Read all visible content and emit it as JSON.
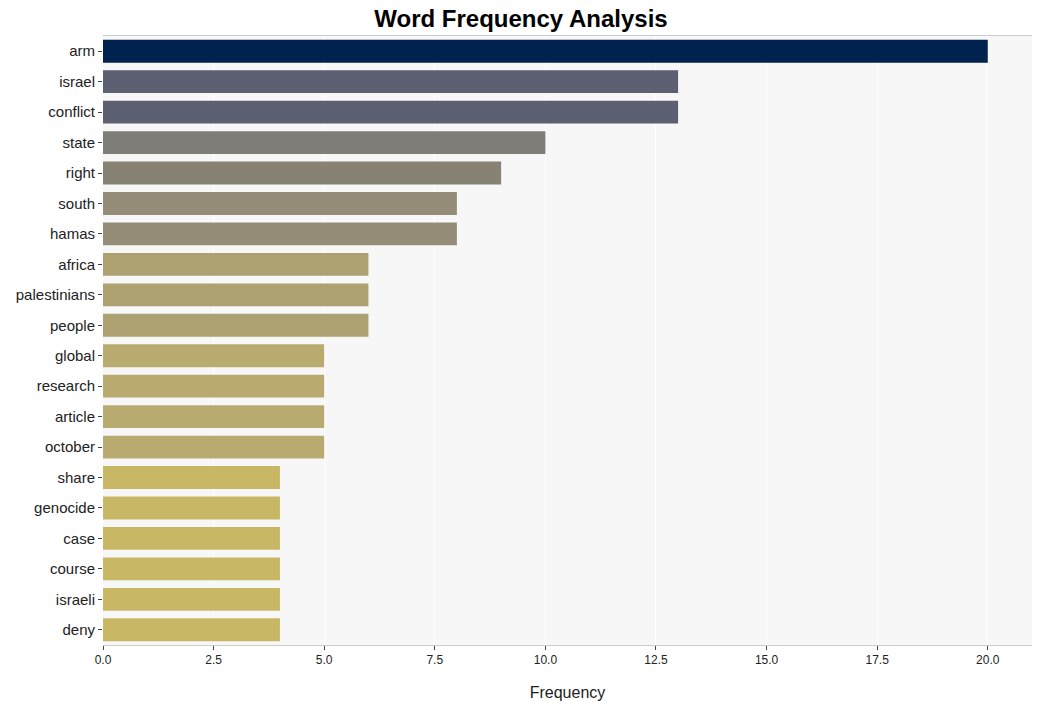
{
  "chart_data": {
    "type": "bar",
    "orientation": "horizontal",
    "title": "Word Frequency Analysis",
    "x_label": "Frequency",
    "categories": [
      "arm",
      "israel",
      "conflict",
      "state",
      "right",
      "south",
      "hamas",
      "africa",
      "palestinians",
      "people",
      "global",
      "research",
      "article",
      "october",
      "share",
      "genocide",
      "case",
      "course",
      "israeli",
      "deny"
    ],
    "values": [
      20,
      13,
      13,
      10,
      9,
      8,
      8,
      6,
      6,
      6,
      5,
      5,
      5,
      5,
      4,
      4,
      4,
      4,
      4,
      4
    ],
    "colors": [
      "#00224e",
      "#5c6070",
      "#5c6070",
      "#7f7d77",
      "#878274",
      "#958d77",
      "#958d77",
      "#ada172",
      "#ada172",
      "#ada172",
      "#b9ab70",
      "#b9ab70",
      "#b9ab70",
      "#b9ab70",
      "#c8b866",
      "#c8b866",
      "#c8b866",
      "#c8b866",
      "#c8b866",
      "#c8b866"
    ],
    "xlim": [
      0,
      21
    ],
    "xticks": [
      {
        "value": 0,
        "label": "0.0"
      },
      {
        "value": 2.5,
        "label": "2.5"
      },
      {
        "value": 5,
        "label": "5.0"
      },
      {
        "value": 7.5,
        "label": "7.5"
      },
      {
        "value": 10,
        "label": "10.0"
      },
      {
        "value": 12.5,
        "label": "12.5"
      },
      {
        "value": 15,
        "label": "15.0"
      },
      {
        "value": 17.5,
        "label": "17.5"
      },
      {
        "value": 20,
        "label": "20.0"
      }
    ],
    "grid": true
  }
}
